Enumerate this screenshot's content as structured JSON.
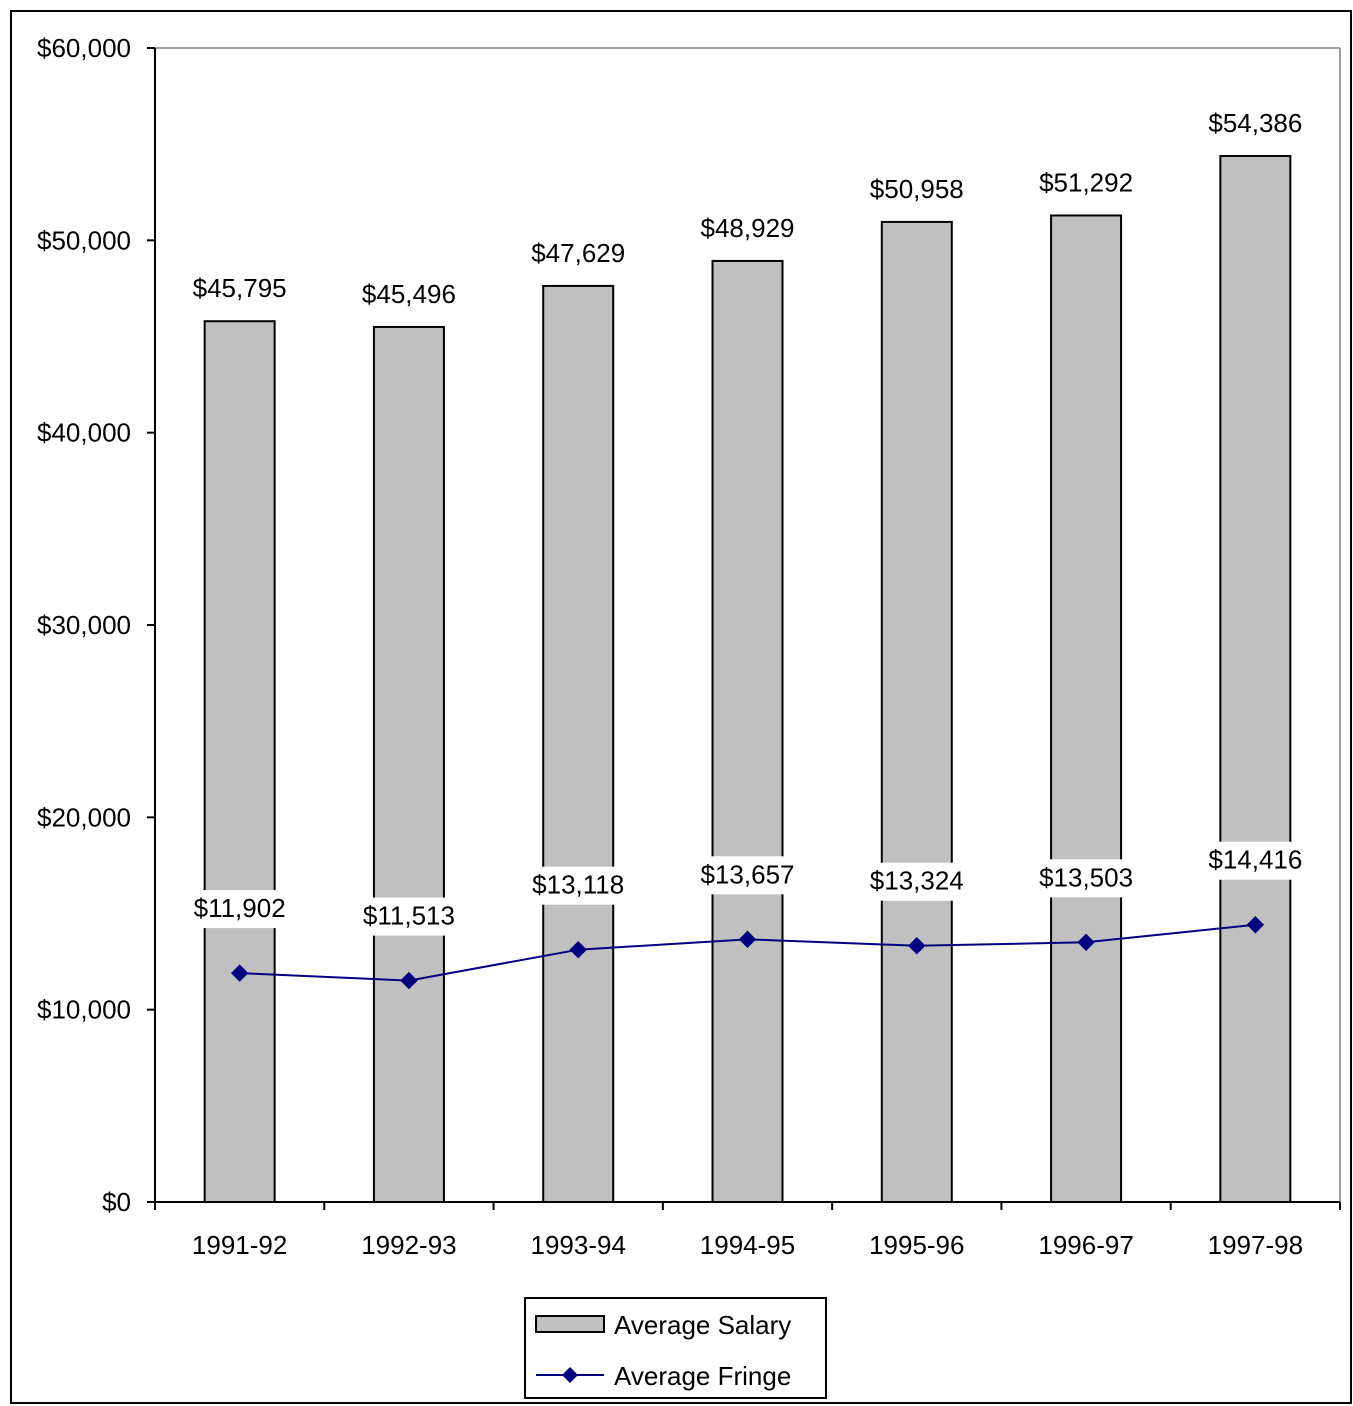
{
  "chart_data": {
    "type": "bar",
    "title": "",
    "xlabel": "",
    "ylabel": "",
    "ylim": [
      0,
      60000
    ],
    "y_ticks": [
      0,
      10000,
      20000,
      30000,
      40000,
      50000,
      60000
    ],
    "y_tick_labels": [
      "$0",
      "$10,000",
      "$20,000",
      "$30,000",
      "$40,000",
      "$50,000",
      "$60,000"
    ],
    "categories": [
      "1991-92",
      "1992-93",
      "1993-94",
      "1994-95",
      "1995-96",
      "1996-97",
      "1997-98"
    ],
    "grid": false,
    "legend_position": "bottom",
    "series": [
      {
        "name": "Average Salary",
        "type": "bar",
        "color": "#c0c0c0",
        "values": [
          45795,
          45496,
          47629,
          48929,
          50958,
          51292,
          54386
        ],
        "labels": [
          "$45,795",
          "$45,496",
          "$47,629",
          "$48,929",
          "$50,958",
          "$51,292",
          "$54,386"
        ]
      },
      {
        "name": "Average Fringe",
        "type": "line",
        "color": "#000080",
        "marker": "diamond",
        "values": [
          11902,
          11513,
          13118,
          13657,
          13324,
          13503,
          14416
        ],
        "labels": [
          "$11,902",
          "$11,513",
          "$13,118",
          "$13,657",
          "$13,324",
          "$13,503",
          "$14,416"
        ]
      }
    ]
  }
}
